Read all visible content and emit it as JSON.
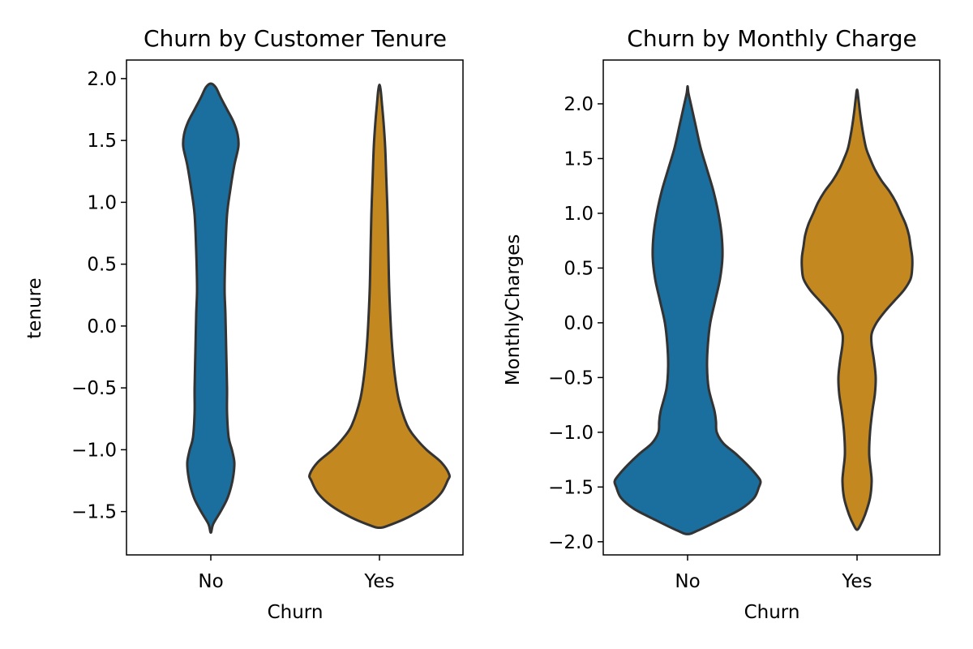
{
  "colors": {
    "No": "#1a6f9f",
    "Yes": "#c48820",
    "outline": "#333333"
  },
  "chart_data": [
    {
      "type": "violin",
      "title": "Churn by Customer Tenure",
      "xlabel": "Churn",
      "ylabel": "tenure",
      "categories": [
        "No",
        "Yes"
      ],
      "ylim": [
        -1.85,
        2.15
      ],
      "yticks": [
        -1.5,
        -1.0,
        -0.5,
        0.0,
        0.5,
        1.0,
        1.5,
        2.0
      ],
      "ytick_labels": [
        "−1.5",
        "−1.0",
        "−0.5",
        "0.0",
        "0.5",
        "1.0",
        "1.5",
        "2.0"
      ],
      "series": [
        {
          "category": "No",
          "color": "#1a6f9f",
          "profile": [
            [
              -1.67,
              0.0
            ],
            [
              -1.6,
              0.015
            ],
            [
              -1.5,
              0.06
            ],
            [
              -1.4,
              0.1
            ],
            [
              -1.3,
              0.125
            ],
            [
              -1.2,
              0.14
            ],
            [
              -1.1,
              0.145
            ],
            [
              -1.0,
              0.13
            ],
            [
              -0.9,
              0.11
            ],
            [
              -0.7,
              0.1
            ],
            [
              -0.5,
              0.1
            ],
            [
              -0.2,
              0.095
            ],
            [
              0.1,
              0.09
            ],
            [
              0.3,
              0.085
            ],
            [
              0.6,
              0.09
            ],
            [
              0.9,
              0.1
            ],
            [
              1.1,
              0.12
            ],
            [
              1.3,
              0.145
            ],
            [
              1.45,
              0.17
            ],
            [
              1.55,
              0.165
            ],
            [
              1.65,
              0.14
            ],
            [
              1.75,
              0.1
            ],
            [
              1.85,
              0.06
            ],
            [
              1.93,
              0.03
            ],
            [
              1.96,
              0.0
            ]
          ]
        },
        {
          "category": "Yes",
          "color": "#c48820",
          "profile": [
            [
              -1.63,
              0.0
            ],
            [
              -1.62,
              0.04
            ],
            [
              -1.55,
              0.17
            ],
            [
              -1.45,
              0.3
            ],
            [
              -1.35,
              0.38
            ],
            [
              -1.25,
              0.42
            ],
            [
              -1.2,
              0.43
            ],
            [
              -1.1,
              0.38
            ],
            [
              -1.0,
              0.29
            ],
            [
              -0.9,
              0.22
            ],
            [
              -0.8,
              0.17
            ],
            [
              -0.6,
              0.12
            ],
            [
              -0.4,
              0.095
            ],
            [
              -0.2,
              0.08
            ],
            [
              0.0,
              0.07
            ],
            [
              0.3,
              0.06
            ],
            [
              0.6,
              0.055
            ],
            [
              0.9,
              0.05
            ],
            [
              1.2,
              0.042
            ],
            [
              1.45,
              0.035
            ],
            [
              1.65,
              0.025
            ],
            [
              1.8,
              0.015
            ],
            [
              1.9,
              0.008
            ],
            [
              1.95,
              0.0
            ]
          ]
        }
      ]
    },
    {
      "type": "violin",
      "title": "Churn by Monthly Charge",
      "xlabel": "Churn",
      "ylabel": "MonthlyCharges",
      "categories": [
        "No",
        "Yes"
      ],
      "ylim": [
        -2.12,
        2.4
      ],
      "yticks": [
        -2.0,
        -1.5,
        -1.0,
        -0.5,
        0.0,
        0.5,
        1.0,
        1.5,
        2.0
      ],
      "ytick_labels": [
        "−2.0",
        "−1.5",
        "−1.0",
        "−0.5",
        "0.0",
        "0.5",
        "1.0",
        "1.5",
        "2.0"
      ],
      "series": [
        {
          "category": "No",
          "color": "#1a6f9f",
          "profile": [
            [
              -1.93,
              0.0
            ],
            [
              -1.9,
              0.06
            ],
            [
              -1.8,
              0.2
            ],
            [
              -1.7,
              0.33
            ],
            [
              -1.6,
              0.41
            ],
            [
              -1.5,
              0.44
            ],
            [
              -1.45,
              0.45
            ],
            [
              -1.4,
              0.43
            ],
            [
              -1.3,
              0.37
            ],
            [
              -1.2,
              0.3
            ],
            [
              -1.1,
              0.22
            ],
            [
              -1.0,
              0.18
            ],
            [
              -0.9,
              0.175
            ],
            [
              -0.8,
              0.165
            ],
            [
              -0.6,
              0.13
            ],
            [
              -0.4,
              0.12
            ],
            [
              -0.2,
              0.125
            ],
            [
              0.0,
              0.14
            ],
            [
              0.2,
              0.17
            ],
            [
              0.4,
              0.2
            ],
            [
              0.6,
              0.215
            ],
            [
              0.8,
              0.21
            ],
            [
              1.0,
              0.19
            ],
            [
              1.2,
              0.16
            ],
            [
              1.4,
              0.12
            ],
            [
              1.6,
              0.08
            ],
            [
              1.8,
              0.05
            ],
            [
              2.0,
              0.02
            ],
            [
              2.1,
              0.005
            ],
            [
              2.16,
              0.0
            ]
          ]
        },
        {
          "category": "Yes",
          "color": "#c48820",
          "profile": [
            [
              -1.89,
              0.0
            ],
            [
              -1.85,
              0.02
            ],
            [
              -1.75,
              0.05
            ],
            [
              -1.6,
              0.08
            ],
            [
              -1.45,
              0.09
            ],
            [
              -1.35,
              0.085
            ],
            [
              -1.2,
              0.075
            ],
            [
              -1.0,
              0.08
            ],
            [
              -0.8,
              0.095
            ],
            [
              -0.65,
              0.11
            ],
            [
              -0.5,
              0.115
            ],
            [
              -0.35,
              0.105
            ],
            [
              -0.2,
              0.09
            ],
            [
              -0.1,
              0.09
            ],
            [
              0.0,
              0.12
            ],
            [
              0.1,
              0.17
            ],
            [
              0.2,
              0.23
            ],
            [
              0.3,
              0.29
            ],
            [
              0.4,
              0.33
            ],
            [
              0.5,
              0.34
            ],
            [
              0.6,
              0.34
            ],
            [
              0.7,
              0.33
            ],
            [
              0.8,
              0.32
            ],
            [
              0.9,
              0.3
            ],
            [
              1.0,
              0.27
            ],
            [
              1.1,
              0.24
            ],
            [
              1.2,
              0.2
            ],
            [
              1.3,
              0.15
            ],
            [
              1.4,
              0.11
            ],
            [
              1.5,
              0.08
            ],
            [
              1.6,
              0.055
            ],
            [
              1.75,
              0.035
            ],
            [
              1.9,
              0.02
            ],
            [
              2.05,
              0.008
            ],
            [
              2.13,
              0.0
            ]
          ]
        }
      ]
    }
  ]
}
